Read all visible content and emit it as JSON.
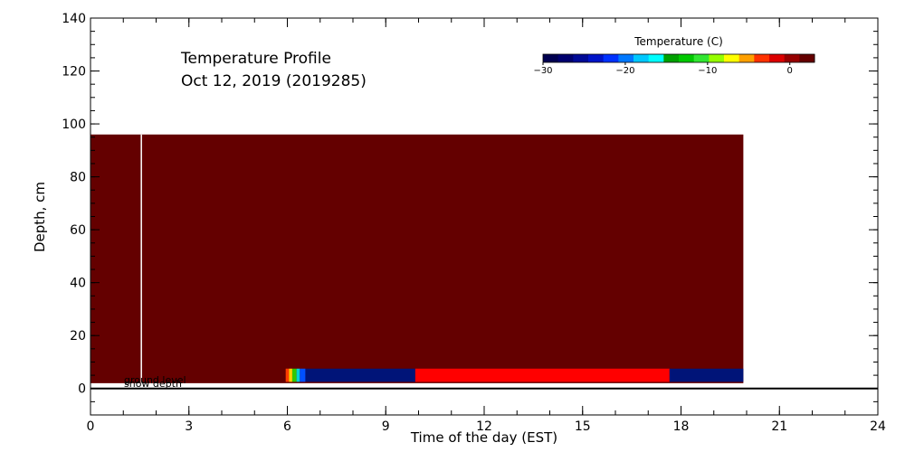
{
  "chart_data": {
    "type": "heatmap",
    "title_line1": "Temperature Profile",
    "title_line2": "Oct 12, 2019 (2019285)",
    "xlabel": "Time of the day (EST)",
    "ylabel": "Depth, cm",
    "xlim": [
      0,
      24
    ],
    "ylim": [
      -10,
      140
    ],
    "xticks": [
      0,
      3,
      6,
      9,
      12,
      15,
      18,
      21,
      24
    ],
    "yticks": [
      0,
      20,
      40,
      60,
      80,
      100,
      120,
      140
    ],
    "xminor_step": 1,
    "yminor_step": 5,
    "background_color": "#640000",
    "data_region": {
      "x": [
        0,
        19.9
      ],
      "y": [
        2,
        96
      ]
    },
    "gap_line_x": 1.55,
    "ground_level_y": 0,
    "annotations": [
      "ground level",
      "snow depth"
    ],
    "bands": [
      {
        "x": [
          5.95,
          6.05
        ],
        "y": [
          2.5,
          7.5
        ],
        "color": "#ff3c00"
      },
      {
        "x": [
          6.05,
          6.15
        ],
        "y": [
          2.5,
          7.5
        ],
        "color": "#ffd000"
      },
      {
        "x": [
          6.15,
          6.28
        ],
        "y": [
          2.5,
          7.5
        ],
        "color": "#32c800"
      },
      {
        "x": [
          6.28,
          6.38
        ],
        "y": [
          2.5,
          7.5
        ],
        "color": "#00d2d2"
      },
      {
        "x": [
          6.38,
          6.55
        ],
        "y": [
          2.5,
          7.5
        ],
        "color": "#0050ff"
      },
      {
        "x": [
          6.55,
          9.9
        ],
        "y": [
          2.5,
          7.5
        ],
        "color": "#001478"
      },
      {
        "x": [
          9.9,
          17.65
        ],
        "y": [
          2.5,
          7.5
        ],
        "color": "#ff0000"
      },
      {
        "x": [
          17.65,
          19.9
        ],
        "y": [
          2.5,
          7.5
        ],
        "color": "#001478"
      }
    ],
    "colorbar": {
      "title": "Temperature (C)",
      "range": [
        -30,
        3
      ],
      "ticks": [
        -30,
        -20,
        -10,
        0
      ],
      "tick_labels": [
        "−30",
        "−20",
        "−10",
        "0"
      ],
      "colors": [
        "#000050",
        "#00006e",
        "#000a96",
        "#0014c8",
        "#0032ff",
        "#0078ff",
        "#00c8ff",
        "#00ffff",
        "#00a000",
        "#00c800",
        "#32e632",
        "#96ff00",
        "#ffff00",
        "#ffa000",
        "#ff3200",
        "#dc0000",
        "#960000",
        "#640000"
      ]
    }
  }
}
